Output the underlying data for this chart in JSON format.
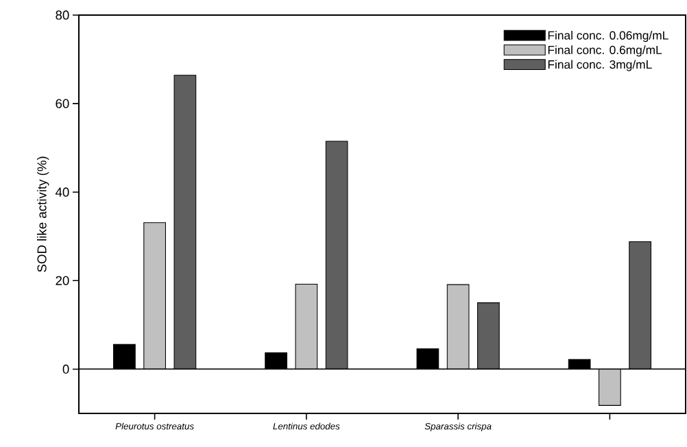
{
  "chart_data": {
    "type": "bar",
    "ylabel": "SOD like activity (%)",
    "categories": [
      "Pleurotus ostreatus",
      "Lentinus edodes",
      "Sparassis crispa",
      null
    ],
    "series": [
      {
        "name": "Final conc. 0.06mg/mL",
        "color": "#000000",
        "values": [
          5.6,
          3.7,
          4.6,
          2.2
        ]
      },
      {
        "name": "Final conc. 0.6mg/mL",
        "color": "#c0c0c0",
        "values": [
          33.1,
          19.2,
          19.1,
          -8.2
        ]
      },
      {
        "name": "Final conc. 3mg/mL",
        "color": "#5f5f5f",
        "values": [
          66.4,
          51.5,
          15.0,
          28.8
        ]
      }
    ],
    "ylim": [
      -10,
      80
    ],
    "yticks": [
      0,
      20,
      40,
      60,
      80
    ],
    "ref_lines": [
      {
        "axis": "y",
        "value": 0,
        "color": "#000000"
      }
    ],
    "grid": false,
    "legend": "top right"
  }
}
